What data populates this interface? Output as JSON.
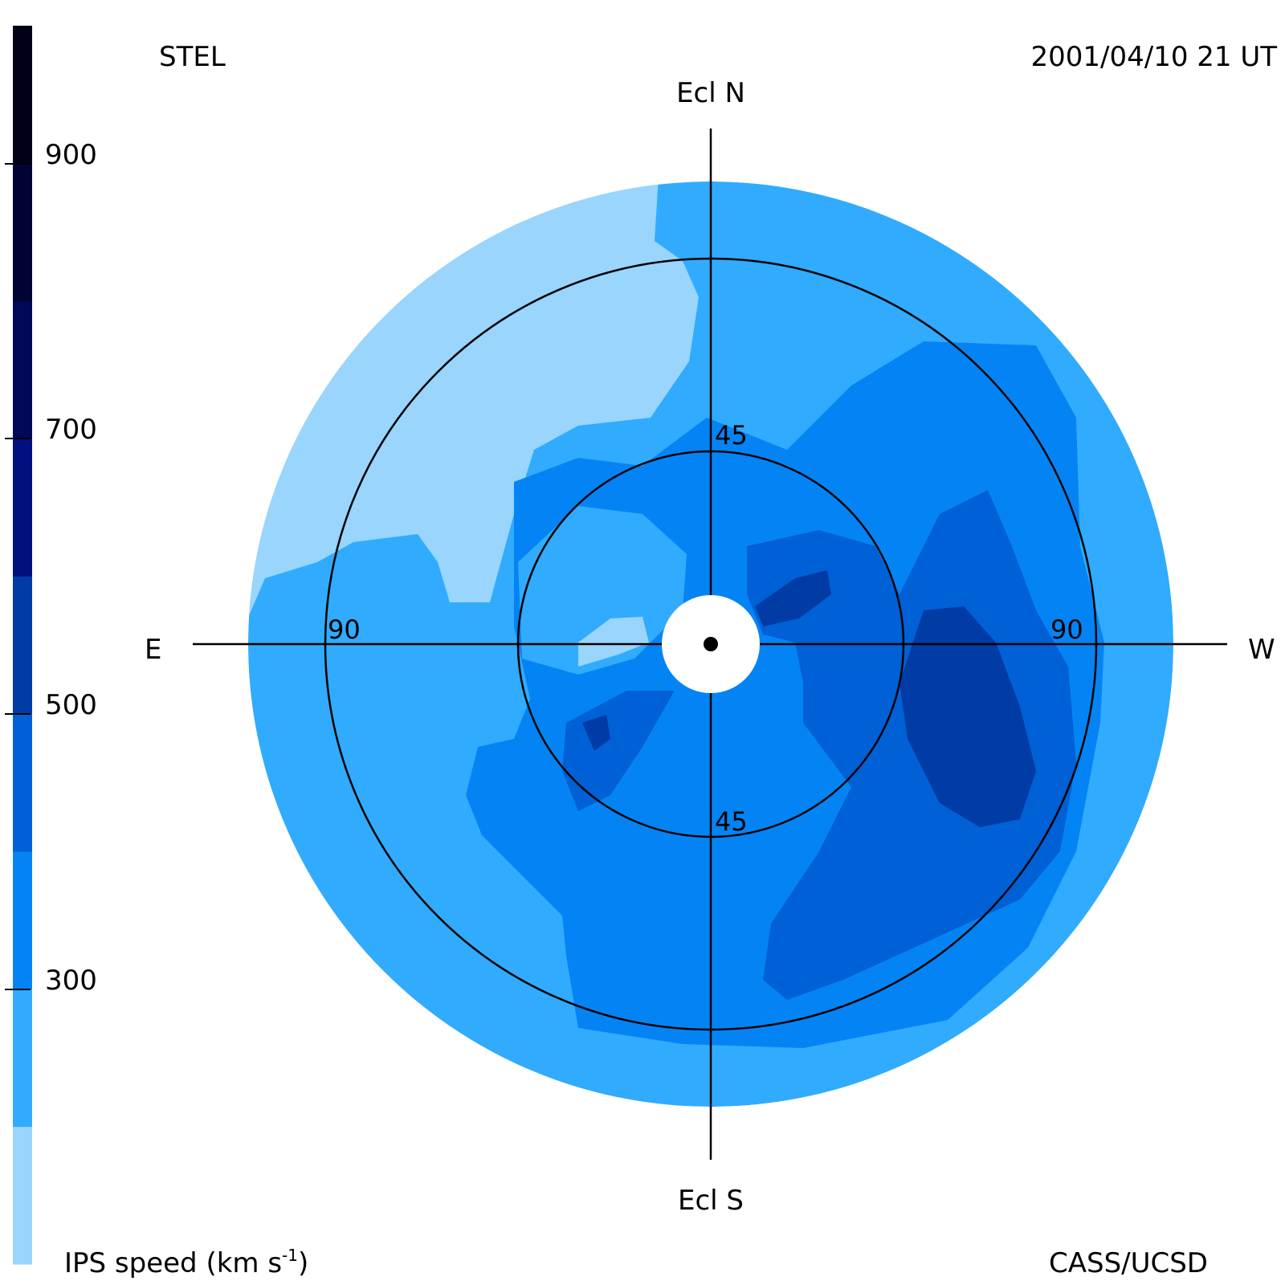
{
  "header": {
    "source": "STEL",
    "timestamp": "2001/04/10 21 UT"
  },
  "footer": {
    "credit": "CASS/UCSD",
    "colorbar_title_main": "IPS speed (km s",
    "colorbar_title_sup": "-1",
    "colorbar_title_end": ")"
  },
  "directions": {
    "north": "Ecl N",
    "south": "Ecl S",
    "east": "E",
    "west": "W"
  },
  "rings": {
    "inner_label_top": "45",
    "inner_label_bottom": "45",
    "outer_label_left": "90",
    "outer_label_right": "90"
  },
  "colorbar": {
    "ticks": [
      "300",
      "500",
      "700",
      "900"
    ],
    "bands": [
      "#99d5fd",
      "#31abfd",
      "#0484f4",
      "#0060d5",
      "#003ba6",
      "#02107f",
      "#010856",
      "#000434",
      "#000018"
    ]
  }
}
